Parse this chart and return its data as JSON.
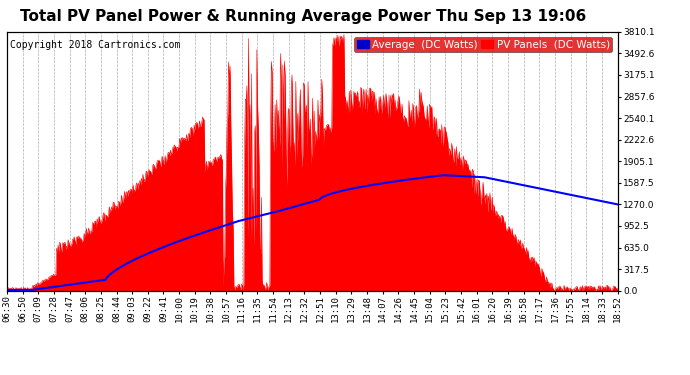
{
  "title": "Total PV Panel Power & Running Average Power Thu Sep 13 19:06",
  "copyright": "Copyright 2018 Cartronics.com",
  "ylabel_right_values": [
    0.0,
    317.5,
    635.0,
    952.5,
    1270.0,
    1587.5,
    1905.1,
    2222.6,
    2540.1,
    2857.6,
    3175.1,
    3492.6,
    3810.1
  ],
  "ylim": [
    0,
    3810.1
  ],
  "background_color": "#ffffff",
  "plot_bg_color": "#ffffff",
  "grid_color": "#bbbbbb",
  "pv_color": "#ff0000",
  "avg_color": "#0000ff",
  "x_tick_labels": [
    "06:30",
    "06:50",
    "07:09",
    "07:28",
    "07:47",
    "08:06",
    "08:25",
    "08:44",
    "09:03",
    "09:22",
    "09:41",
    "10:00",
    "10:19",
    "10:38",
    "10:57",
    "11:16",
    "11:35",
    "11:54",
    "12:13",
    "12:32",
    "12:51",
    "13:10",
    "13:29",
    "13:48",
    "14:07",
    "14:26",
    "14:45",
    "15:04",
    "15:23",
    "15:42",
    "16:01",
    "16:20",
    "16:39",
    "16:58",
    "17:17",
    "17:36",
    "17:55",
    "18:14",
    "18:33",
    "18:52"
  ],
  "title_fontsize": 11,
  "copyright_fontsize": 7,
  "tick_fontsize": 6.5,
  "legend_fontsize": 7.5
}
